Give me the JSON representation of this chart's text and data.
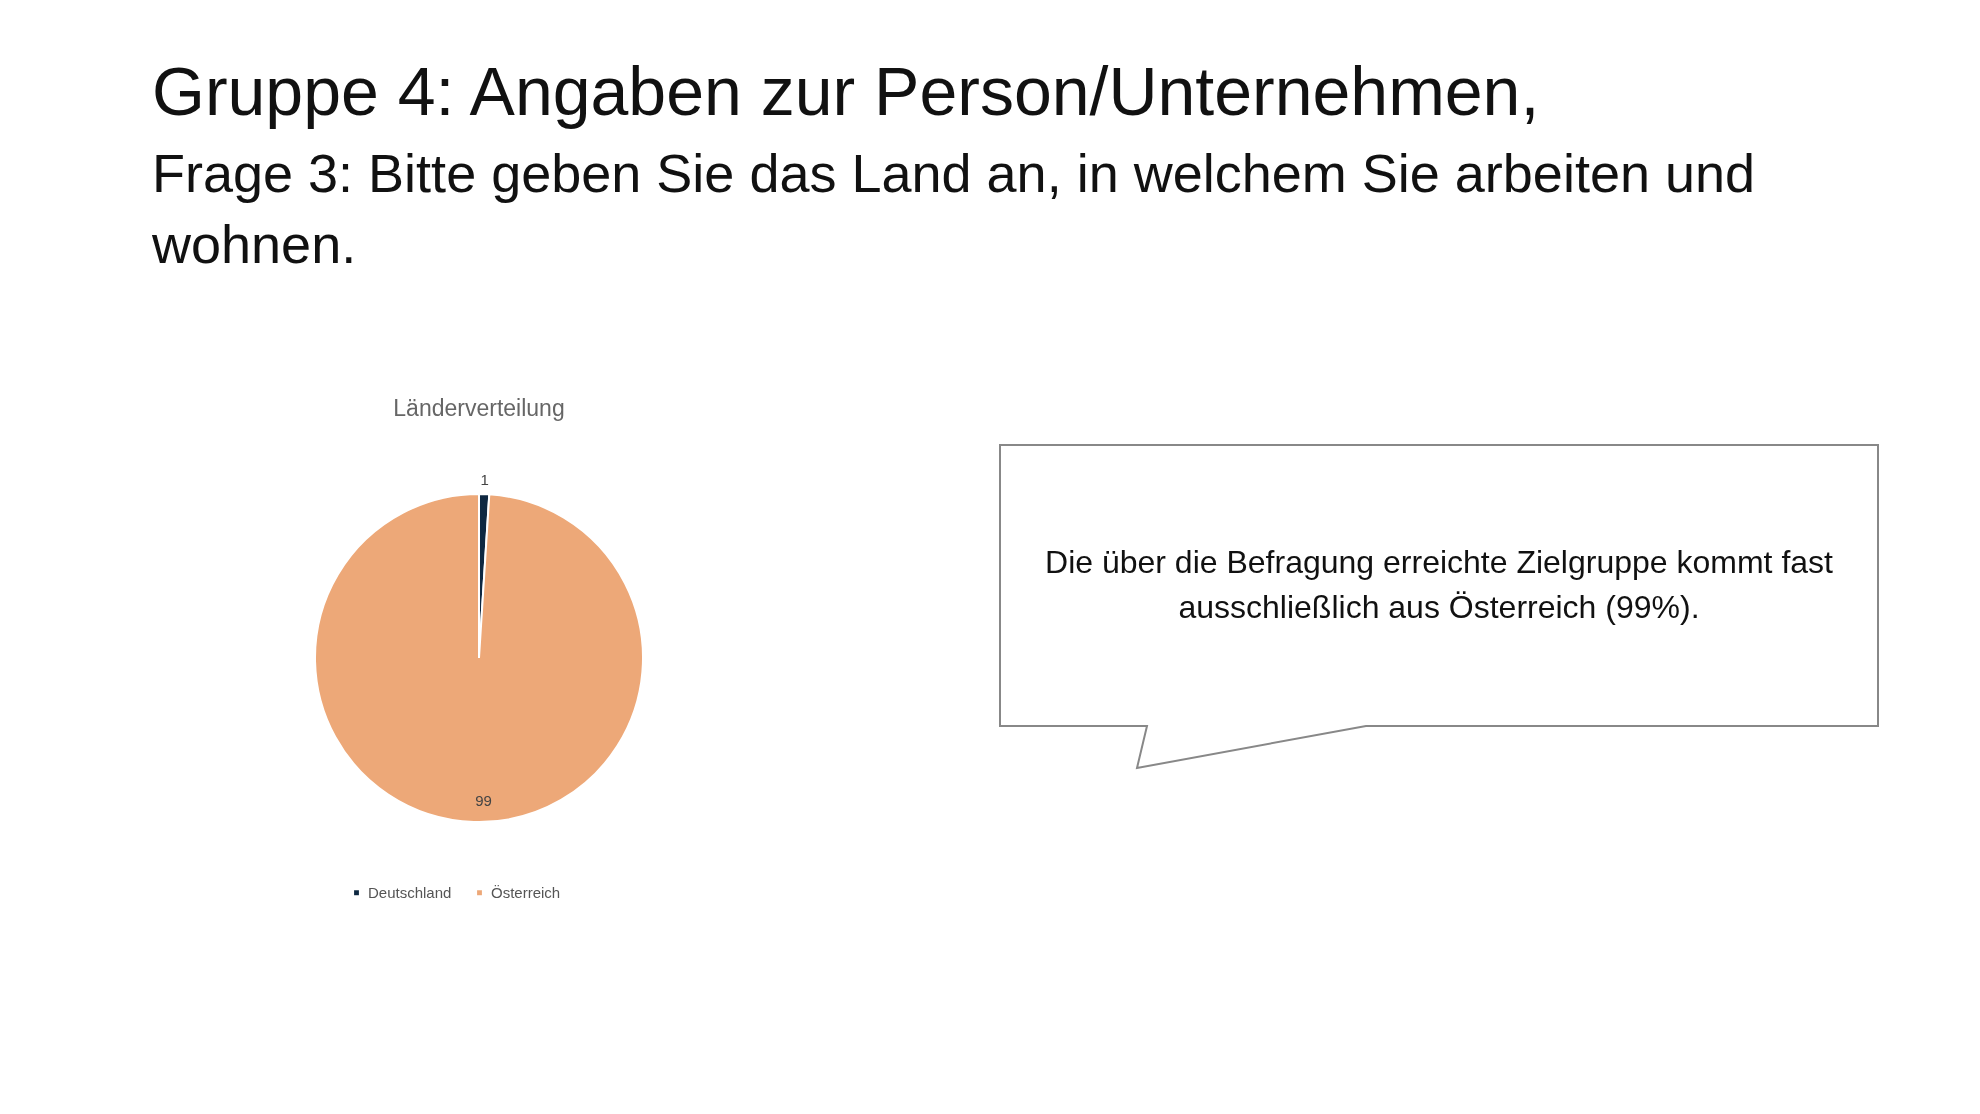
{
  "chart_data": {
    "type": "pie",
    "title": "Länderverteilung",
    "categories": [
      "Deutschland",
      "Österreich"
    ],
    "values": [
      1,
      99
    ],
    "colors": [
      "#0e2841",
      "#eda878"
    ],
    "data_labels": true,
    "legend": "bottom",
    "annotations": [
      "Gruppe 4: Angaben zur Person/Unternehmen,",
      "Frage 3: Bitte geben Sie das Land an, in welchem Sie arbeiten und wohnen.",
      "Die über die Befragung erreichte Zielgruppe kommt fast ausschließlich aus Österreich (99%)."
    ]
  }
}
